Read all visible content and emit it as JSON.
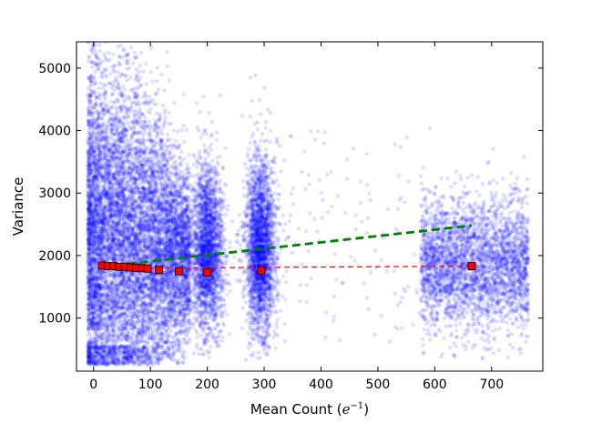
{
  "chart_data": {
    "type": "scatter",
    "xlabel_prefix": "Mean Count (",
    "xlabel_math": "e",
    "xlabel_sup": "−1",
    "xlabel_suffix": ")",
    "ylabel": "Variance",
    "xlim": [
      -30,
      790
    ],
    "ylim": [
      150,
      5420
    ],
    "x_ticks": [
      0,
      100,
      200,
      300,
      400,
      500,
      600,
      700
    ],
    "y_ticks": [
      1000,
      2000,
      3000,
      4000,
      5000
    ],
    "grid": false,
    "colors": {
      "scatter": "#0000ff",
      "binned_points": "#ff0000",
      "binned_fit": "#ff0000",
      "green_line": "#008000"
    },
    "clusters": [
      {
        "x_range": [
          0,
          170
        ],
        "y_center": 2200,
        "y_spread": 1700,
        "note": "dense cluster at low counts"
      },
      {
        "x_center": 200,
        "x_spread": 25,
        "y_center": 2000,
        "y_spread": 1200
      },
      {
        "x_center": 295,
        "x_spread": 25,
        "y_center": 2100,
        "y_spread": 1300
      },
      {
        "x_range": [
          570,
          770
        ],
        "y_center": 1900,
        "y_spread": 900
      }
    ],
    "binned_points": {
      "x": [
        15,
        25,
        35,
        45,
        55,
        65,
        75,
        85,
        95,
        115,
        150,
        200,
        295,
        665
      ],
      "y": [
        1840,
        1830,
        1830,
        1820,
        1820,
        1810,
        1800,
        1800,
        1790,
        1770,
        1750,
        1730,
        1760,
        1830
      ]
    },
    "red_fit_line": {
      "x": [
        15,
        665
      ],
      "y": [
        1795,
        1830
      ]
    },
    "green_line": {
      "x": [
        15,
        665
      ],
      "y": [
        1820,
        2480
      ]
    }
  }
}
